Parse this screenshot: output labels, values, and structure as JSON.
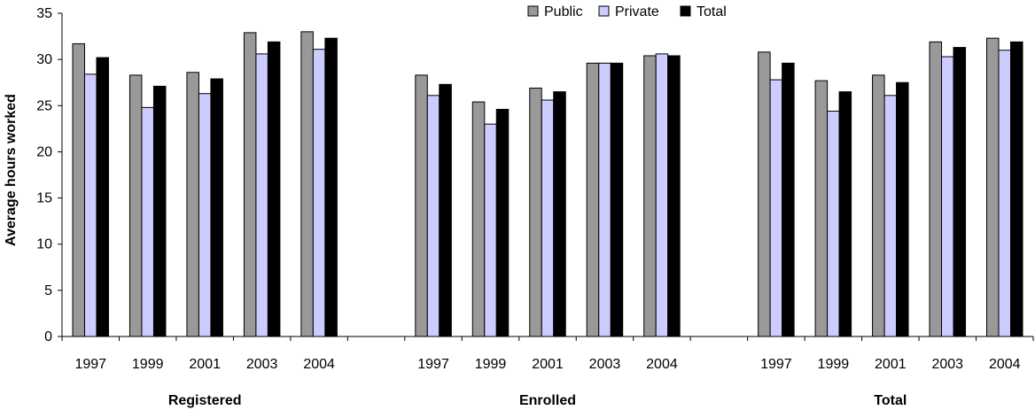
{
  "chart_data": {
    "type": "bar",
    "ylabel": "Average hours worked",
    "ylim": [
      0,
      35
    ],
    "yticks": [
      0,
      5,
      10,
      15,
      20,
      25,
      30,
      35
    ],
    "legend_position": "top-right",
    "groups": [
      {
        "name": "Registered",
        "categories": [
          "1997",
          "1999",
          "2001",
          "2003",
          "2004"
        ]
      },
      {
        "name": "Enrolled",
        "categories": [
          "1997",
          "1999",
          "2001",
          "2003",
          "2004"
        ]
      },
      {
        "name": "Total",
        "categories": [
          "1997",
          "1999",
          "2001",
          "2003",
          "2004"
        ]
      }
    ],
    "series": [
      {
        "name": "Public",
        "color": "#999999",
        "values": [
          [
            31.7,
            28.3,
            28.6,
            32.9,
            33.0
          ],
          [
            28.3,
            25.4,
            26.9,
            29.6,
            30.4
          ],
          [
            30.8,
            27.7,
            28.3,
            31.9,
            32.3
          ]
        ]
      },
      {
        "name": "Private",
        "color": "#ccccff",
        "values": [
          [
            28.4,
            24.8,
            26.3,
            30.6,
            31.1
          ],
          [
            26.1,
            23.0,
            25.6,
            29.6,
            30.6
          ],
          [
            27.8,
            24.4,
            26.1,
            30.3,
            31.0
          ]
        ]
      },
      {
        "name": "Total",
        "color": "#000000",
        "values": [
          [
            30.2,
            27.1,
            27.9,
            31.9,
            32.3
          ],
          [
            27.3,
            24.6,
            26.5,
            29.6,
            30.4
          ],
          [
            29.6,
            26.5,
            27.5,
            31.3,
            31.9
          ]
        ]
      }
    ]
  }
}
